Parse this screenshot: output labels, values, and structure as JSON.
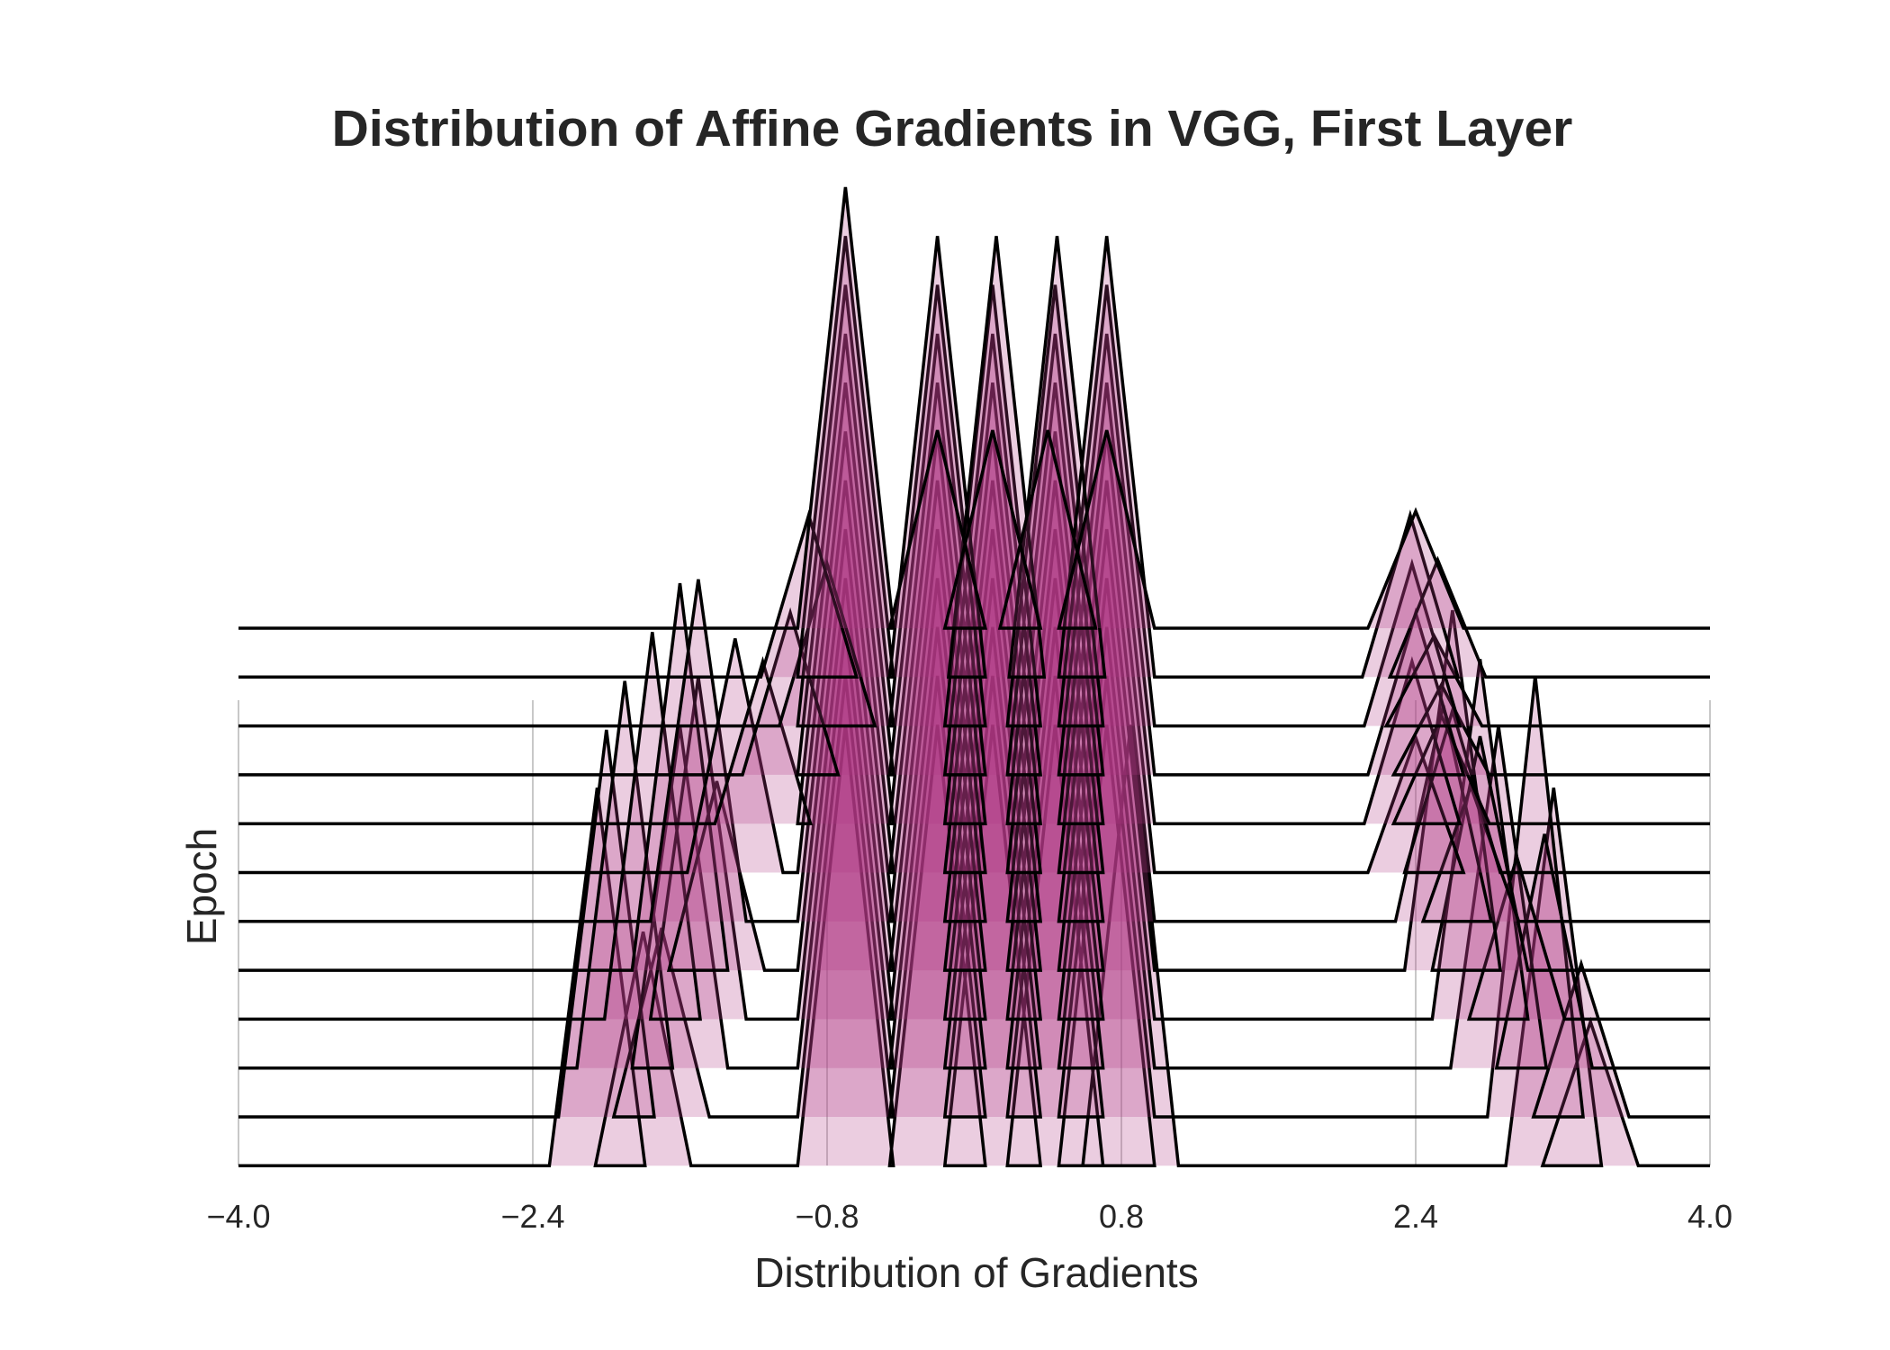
{
  "chart_data": {
    "type": "ridgeline",
    "title": "Distribution of Affine Gradients in VGG, First Layer",
    "xlabel": "Distribution of Gradients",
    "ylabel": "Epoch",
    "xlim": [
      -4.0,
      4.0
    ],
    "xticks": [
      -4.0,
      -2.4,
      -0.8,
      0.8,
      2.4,
      4.0
    ],
    "xtick_labels": [
      "−4.0",
      "−2.4",
      "−0.8",
      "0.8",
      "2.4",
      "4.0"
    ],
    "grid": "vertical",
    "ridge_count": 12,
    "fill_color": "#ae3682",
    "line_color": "#000000",
    "peaks": [
      [
        [
          -0.7,
          4.9
        ],
        [
          -0.2,
          2.2
        ],
        [
          0.1,
          2.2
        ],
        [
          0.4,
          2.2
        ],
        [
          0.72,
          2.2
        ],
        [
          2.4,
          1.3
        ]
      ],
      [
        [
          -0.9,
          1.8
        ],
        [
          -0.7,
          4.9
        ],
        [
          -0.2,
          4.9
        ],
        [
          0.12,
          4.9
        ],
        [
          0.45,
          4.9
        ],
        [
          0.72,
          4.9
        ],
        [
          2.37,
          1.8
        ],
        [
          2.52,
          1.3
        ]
      ],
      [
        [
          -0.8,
          1.8
        ],
        [
          -0.7,
          4.9
        ],
        [
          -0.2,
          4.9
        ],
        [
          0.1,
          4.9
        ],
        [
          0.44,
          4.9
        ],
        [
          0.72,
          4.9
        ],
        [
          2.38,
          1.8
        ],
        [
          2.5,
          1.0
        ]
      ],
      [
        [
          -1.0,
          1.8
        ],
        [
          -0.7,
          4.9
        ],
        [
          -0.2,
          4.9
        ],
        [
          0.1,
          4.9
        ],
        [
          0.44,
          4.9
        ],
        [
          0.72,
          4.9
        ],
        [
          2.4,
          1.8
        ],
        [
          2.54,
          1.0
        ]
      ],
      [
        [
          -1.15,
          1.8
        ],
        [
          -0.7,
          4.9
        ],
        [
          -0.2,
          4.9
        ],
        [
          0.1,
          4.9
        ],
        [
          0.44,
          4.9
        ],
        [
          0.72,
          4.9
        ],
        [
          2.38,
          1.8
        ],
        [
          2.54,
          1.2
        ]
      ],
      [
        [
          -1.3,
          2.6
        ],
        [
          -0.7,
          4.9
        ],
        [
          -0.2,
          4.9
        ],
        [
          0.1,
          4.9
        ],
        [
          0.44,
          4.9
        ],
        [
          0.72,
          4.9
        ],
        [
          2.4,
          1.5
        ],
        [
          2.6,
          1.8
        ]
      ],
      [
        [
          -1.5,
          3.8
        ],
        [
          -0.7,
          4.9
        ],
        [
          -0.2,
          4.9
        ],
        [
          0.1,
          4.9
        ],
        [
          0.44,
          4.9
        ],
        [
          0.72,
          4.9
        ],
        [
          2.55,
          2.4
        ],
        [
          2.7,
          1.5
        ]
      ],
      [
        [
          -1.6,
          4.3
        ],
        [
          -1.4,
          2.1
        ],
        [
          -0.7,
          4.9
        ],
        [
          -0.2,
          4.9
        ],
        [
          0.1,
          4.9
        ],
        [
          0.44,
          4.9
        ],
        [
          0.72,
          4.9
        ],
        [
          2.6,
          4.0
        ],
        [
          2.75,
          2.6
        ]
      ],
      [
        [
          -1.75,
          4.3
        ],
        [
          -1.5,
          3.8
        ],
        [
          -0.7,
          4.9
        ],
        [
          -0.2,
          4.9
        ],
        [
          0.1,
          4.9
        ],
        [
          0.44,
          4.9
        ],
        [
          0.72,
          4.9
        ],
        [
          2.75,
          4.0
        ],
        [
          2.95,
          1.8
        ]
      ],
      [
        [
          -1.9,
          4.3
        ],
        [
          -1.6,
          3.8
        ],
        [
          -0.7,
          4.9
        ],
        [
          -0.2,
          4.9
        ],
        [
          0.1,
          4.9
        ],
        [
          0.44,
          4.9
        ],
        [
          0.72,
          4.9
        ],
        [
          2.85,
          3.8
        ],
        [
          3.1,
          2.6
        ]
      ],
      [
        [
          -2.0,
          4.3
        ],
        [
          -1.7,
          2.1
        ],
        [
          -0.7,
          4.9
        ],
        [
          -0.2,
          4.9
        ],
        [
          0.1,
          4.9
        ],
        [
          0.44,
          4.9
        ],
        [
          0.72,
          4.9
        ],
        [
          3.05,
          4.9
        ],
        [
          3.3,
          1.7
        ]
      ],
      [
        [
          -2.05,
          4.2
        ],
        [
          -1.8,
          2.6
        ],
        [
          -0.7,
          4.9
        ],
        [
          -0.2,
          4.9
        ],
        [
          0.1,
          4.9
        ],
        [
          0.44,
          4.9
        ],
        [
          0.72,
          4.9
        ],
        [
          0.85,
          4.9
        ],
        [
          3.15,
          4.2
        ],
        [
          3.35,
          1.6
        ]
      ]
    ]
  }
}
